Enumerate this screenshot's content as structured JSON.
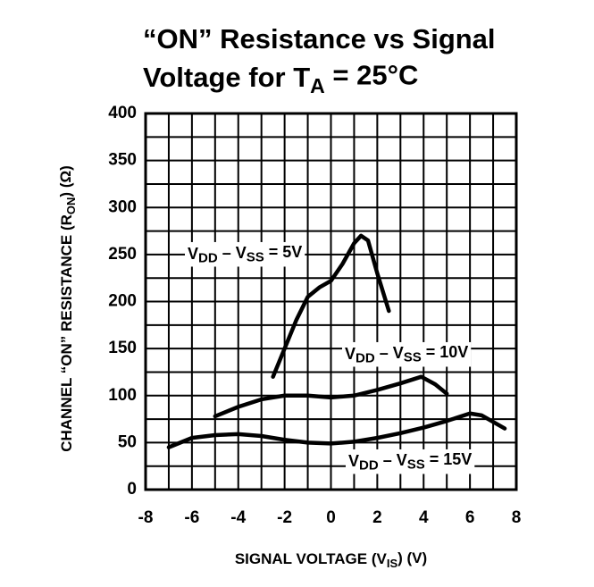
{
  "chart_data": {
    "type": "line",
    "title": [
      [
        {
          "text": "“ON” Resistance vs Signal"
        }
      ],
      [
        {
          "text": "Voltage for T"
        },
        {
          "text": "A",
          "sub": true
        },
        {
          "text": " = 25°C"
        }
      ]
    ],
    "x_label": [
      {
        "text": "SIGNAL VOLTAGE (V"
      },
      {
        "text": "IS",
        "sub": true
      },
      {
        "text": ") (V)"
      }
    ],
    "y_label": [
      {
        "text": "CHANNEL “ON” RESISTANCE (R"
      },
      {
        "text": "ON",
        "sub": true
      },
      {
        "text": ") (Ω)"
      }
    ],
    "xlim": [
      -8,
      8
    ],
    "ylim": [
      0,
      400
    ],
    "xticks": [
      -8,
      -6,
      -4,
      -2,
      0,
      2,
      4,
      6,
      8
    ],
    "yticks": [
      0,
      50,
      100,
      150,
      200,
      250,
      300,
      350,
      400
    ],
    "xgrid": [
      -8,
      -7,
      -6,
      -5,
      -4,
      -3,
      -2,
      -1,
      0,
      1,
      2,
      3,
      4,
      5,
      6,
      7,
      8
    ],
    "ygrid": [
      0,
      25,
      50,
      75,
      100,
      125,
      150,
      175,
      200,
      225,
      250,
      275,
      300,
      325,
      350,
      375,
      400
    ],
    "grid": true,
    "series": [
      {
        "name": [
          {
            "text": "V"
          },
          {
            "text": "DD",
            "sub": true
          },
          {
            "text": " – V"
          },
          {
            "text": "SS",
            "sub": true
          },
          {
            "text": " = 5V"
          }
        ],
        "color": "#000000",
        "x": [
          -2.5,
          -2,
          -1.5,
          -1,
          -0.5,
          0,
          0.5,
          1,
          1.3,
          1.6,
          2,
          2.5
        ],
        "values": [
          120,
          150,
          180,
          205,
          215,
          222,
          240,
          262,
          270,
          265,
          230,
          190
        ]
      },
      {
        "name": [
          {
            "text": "V"
          },
          {
            "text": "DD",
            "sub": true
          },
          {
            "text": " – V"
          },
          {
            "text": "SS",
            "sub": true
          },
          {
            "text": " = 10V"
          }
        ],
        "color": "#000000",
        "x": [
          -5,
          -4,
          -3,
          -2,
          -1,
          0,
          1,
          2,
          3,
          3.9,
          4.5,
          5
        ],
        "values": [
          78,
          88,
          96,
          100,
          100,
          98,
          100,
          106,
          113,
          120,
          112,
          102
        ]
      },
      {
        "name": [
          {
            "text": "V"
          },
          {
            "text": "DD",
            "sub": true
          },
          {
            "text": " – V"
          },
          {
            "text": "SS",
            "sub": true
          },
          {
            "text": " = 15V"
          }
        ],
        "color": "#000000",
        "x": [
          -7,
          -6,
          -5,
          -4,
          -3,
          -2,
          -1,
          0,
          1,
          2,
          3,
          4,
          5,
          6,
          6.5,
          7,
          7.5
        ],
        "values": [
          45,
          55,
          58,
          59,
          57,
          53,
          50,
          49,
          51,
          55,
          60,
          66,
          73,
          81,
          79,
          72,
          65
        ]
      }
    ]
  }
}
